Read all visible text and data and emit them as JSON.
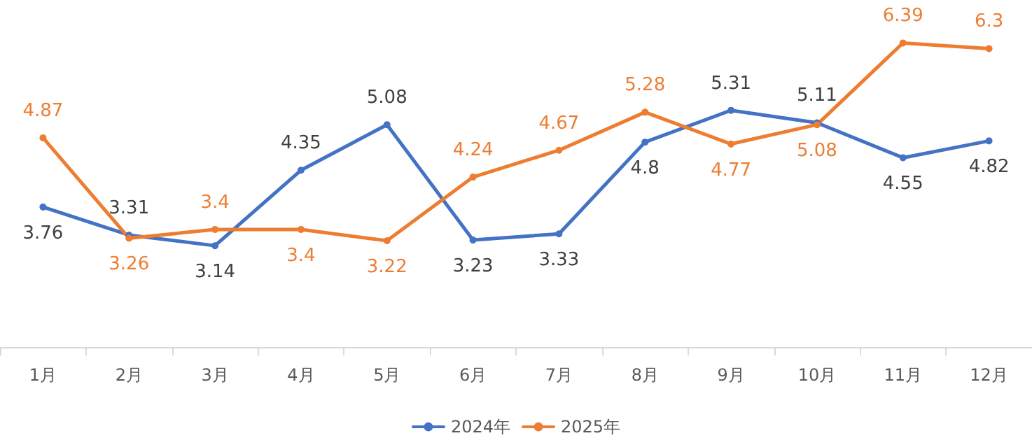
{
  "chart_data": {
    "type": "line",
    "categories": [
      "1月",
      "2月",
      "3月",
      "4月",
      "5月",
      "6月",
      "7月",
      "8月",
      "9月",
      "10月",
      "11月",
      "12月"
    ],
    "series": [
      {
        "name": "2024年",
        "color": "#4472c4",
        "values": [
          3.76,
          3.31,
          3.14,
          4.35,
          5.08,
          3.23,
          3.33,
          4.8,
          5.31,
          5.11,
          4.55,
          4.82
        ]
      },
      {
        "name": "2025年",
        "color": "#ed7d31",
        "values": [
          4.87,
          3.26,
          3.4,
          3.4,
          3.22,
          4.24,
          4.67,
          5.28,
          4.77,
          5.08,
          6.39,
          6.3
        ]
      }
    ],
    "data_labels": true,
    "grid": false,
    "legend": "bottom",
    "marker": "circle",
    "line_style": "solid"
  }
}
